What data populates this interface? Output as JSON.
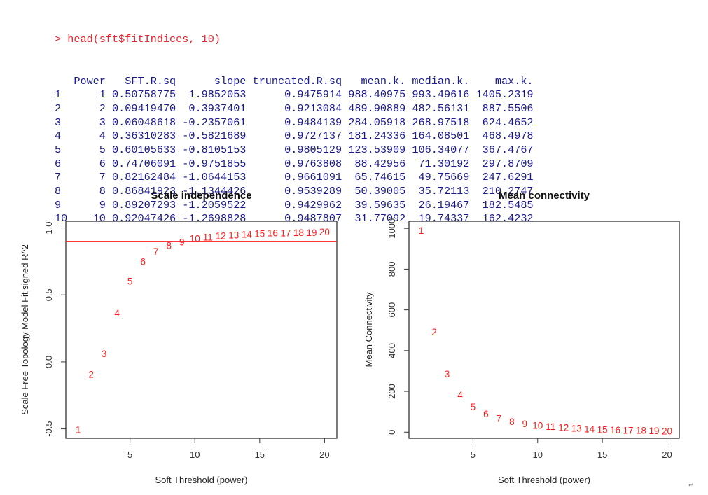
{
  "console": {
    "command_prompt": "> ",
    "command": "head(sft$fitIndices, 10)",
    "table": {
      "columns": [
        "",
        "Power",
        "SFT.R.sq",
        "slope",
        "truncated.R.sq",
        "mean.k.",
        "median.k.",
        "max.k."
      ],
      "rows": [
        [
          "1",
          "1",
          "0.50758775",
          "1.9852053",
          "0.9475914",
          "988.40975",
          "993.49616",
          "1405.2319"
        ],
        [
          "2",
          "2",
          "0.09419470",
          "0.3937401",
          "0.9213084",
          "489.90889",
          "482.56131",
          "887.5506"
        ],
        [
          "3",
          "3",
          "0.06048618",
          "-0.2357061",
          "0.9484139",
          "284.05918",
          "268.97518",
          "624.4652"
        ],
        [
          "4",
          "4",
          "0.36310283",
          "-0.5821689",
          "0.9727137",
          "181.24336",
          "164.08501",
          "468.4978"
        ],
        [
          "5",
          "5",
          "0.60105633",
          "-0.8105153",
          "0.9805129",
          "123.53909",
          "106.34077",
          "367.4767"
        ],
        [
          "6",
          "6",
          "0.74706091",
          "-0.9751855",
          "0.9763808",
          "88.42956",
          "71.30192",
          "297.8709"
        ],
        [
          "7",
          "7",
          "0.82162484",
          "-1.0644153",
          "0.9661091",
          "65.74615",
          "49.75669",
          "247.6291"
        ],
        [
          "8",
          "8",
          "0.86841923",
          "-1.1344426",
          "0.9539289",
          "50.39005",
          "35.72113",
          "210.2747"
        ],
        [
          "9",
          "9",
          "0.89207293",
          "-1.2059522",
          "0.9429962",
          "39.59635",
          "26.19467",
          "182.5485"
        ],
        [
          "10",
          "10",
          "0.92047426",
          "-1.2698828",
          "0.9487807",
          "31.77092",
          "19.74337",
          "162.4232"
        ]
      ]
    }
  },
  "colors": {
    "command": "#e8242c",
    "output": "#1a1a8c",
    "points": "#ff1a1a",
    "threshold_line": "#ff1a1a",
    "axis": "#333333"
  },
  "chart_data": [
    {
      "type": "scatter",
      "title": "Scale independence",
      "xlabel": "Soft Threshold (power)",
      "ylabel": "Scale Free Topology Model Fit,signed R^2",
      "x": [
        1,
        2,
        3,
        4,
        5,
        6,
        7,
        8,
        9,
        10,
        11,
        12,
        13,
        14,
        15,
        16,
        17,
        18,
        19,
        20
      ],
      "y": [
        -0.5076,
        -0.0942,
        0.0605,
        0.3631,
        0.6011,
        0.7471,
        0.8216,
        0.8684,
        0.8921,
        0.9205,
        0.93,
        0.94,
        0.945,
        0.95,
        0.955,
        0.96,
        0.962,
        0.965,
        0.965,
        0.97
      ],
      "point_labels": [
        "1",
        "2",
        "3",
        "4",
        "5",
        "6",
        "7",
        "8",
        "9",
        "10",
        "11",
        "12",
        "13",
        "14",
        "15",
        "16",
        "17",
        "18",
        "19",
        "20"
      ],
      "xlim": [
        0.05,
        20.95
      ],
      "ylim": [
        -0.57,
        1.05
      ],
      "xticks": [
        5,
        10,
        15,
        20
      ],
      "yticks": [
        -0.5,
        0.0,
        0.5,
        1.0
      ],
      "ytick_labels": [
        "-0.5",
        "0.0",
        "0.5",
        "1.0"
      ],
      "hline": 0.9,
      "grid": false
    },
    {
      "type": "scatter",
      "title": "Mean connectivity",
      "xlabel": "Soft Threshold (power)",
      "ylabel": "Mean Connectivity",
      "x": [
        1,
        2,
        3,
        4,
        5,
        6,
        7,
        8,
        9,
        10,
        11,
        12,
        13,
        14,
        15,
        16,
        17,
        18,
        19,
        20
      ],
      "y": [
        988.41,
        489.91,
        284.06,
        181.24,
        123.54,
        88.43,
        65.75,
        50.39,
        39.6,
        31.77,
        26,
        21,
        17.5,
        14.5,
        12,
        10,
        8.5,
        7,
        6,
        5
      ],
      "point_labels": [
        "1",
        "2",
        "3",
        "4",
        "5",
        "6",
        "7",
        "8",
        "9",
        "10",
        "11",
        "12",
        "13",
        "14",
        "15",
        "16",
        "17",
        "18",
        "19",
        "20"
      ],
      "xlim": [
        0.05,
        20.95
      ],
      "ylim": [
        -30,
        1035
      ],
      "xticks": [
        5,
        10,
        15,
        20
      ],
      "yticks": [
        0,
        200,
        400,
        600,
        800,
        1000
      ],
      "ytick_labels": [
        "0",
        "200",
        "400",
        "600",
        "800",
        "1000"
      ],
      "grid": false
    }
  ],
  "footer_mark": "↵"
}
